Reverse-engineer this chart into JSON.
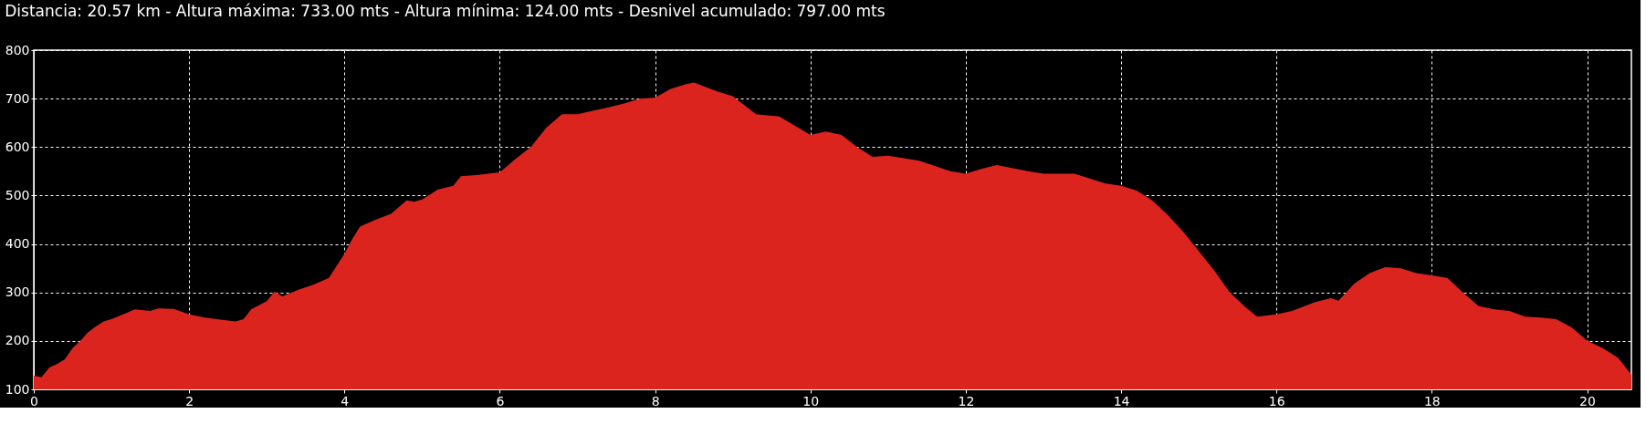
{
  "chart_data": {
    "type": "area",
    "title": "Distancia: 20.57 km - Altura máxima: 733.00 mts - Altura mínima: 124.00 mts - Desnivel acumulado: 797.00 mts",
    "x": [
      0,
      0.1,
      0.2,
      0.3,
      0.4,
      0.5,
      0.6,
      0.7,
      0.8,
      0.9,
      1.0,
      1.2,
      1.3,
      1.5,
      1.6,
      1.8,
      2.0,
      2.2,
      2.4,
      2.6,
      2.7,
      2.8,
      3.0,
      3.1,
      3.2,
      3.4,
      3.6,
      3.8,
      4.0,
      4.1,
      4.2,
      4.4,
      4.6,
      4.8,
      4.9,
      5.0,
      5.2,
      5.4,
      5.5,
      5.7,
      6.0,
      6.2,
      6.4,
      6.6,
      6.8,
      7.0,
      7.2,
      7.4,
      7.6,
      7.8,
      8.0,
      8.2,
      8.4,
      8.5,
      8.8,
      9.0,
      9.3,
      9.6,
      10.0,
      10.2,
      10.4,
      10.6,
      10.8,
      11.0,
      11.4,
      11.8,
      12.0,
      12.2,
      12.4,
      12.8,
      13.0,
      13.4,
      13.8,
      14.0,
      14.2,
      14.4,
      14.6,
      14.8,
      15.0,
      15.2,
      15.4,
      15.6,
      15.75,
      16.0,
      16.2,
      16.5,
      16.7,
      16.8,
      17.0,
      17.2,
      17.4,
      17.6,
      17.8,
      18.0,
      18.2,
      18.4,
      18.6,
      18.8,
      19.0,
      19.2,
      19.4,
      19.6,
      19.8,
      20.0,
      20.2,
      20.4,
      20.57
    ],
    "series": [
      {
        "color": "#dc241f",
        "values": [
          128,
          125,
          145,
          152,
          162,
          185,
          200,
          218,
          230,
          240,
          245,
          258,
          265,
          262,
          267,
          266,
          255,
          248,
          244,
          240,
          245,
          265,
          282,
          302,
          292,
          305,
          316,
          330,
          380,
          410,
          436,
          450,
          462,
          490,
          487,
          492,
          512,
          520,
          540,
          542,
          548,
          575,
          600,
          640,
          668,
          668,
          675,
          682,
          690,
          700,
          702,
          720,
          730,
          733,
          715,
          705,
          668,
          663,
          625,
          632,
          625,
          600,
          580,
          582,
          572,
          550,
          545,
          555,
          563,
          550,
          545,
          545,
          525,
          520,
          510,
          490,
          460,
          425,
          385,
          345,
          300,
          270,
          250,
          255,
          262,
          280,
          288,
          283,
          318,
          340,
          352,
          350,
          340,
          335,
          330,
          300,
          272,
          265,
          262,
          250,
          248,
          245,
          228,
          200,
          185,
          165,
          130
        ]
      }
    ],
    "xlim": [
      0,
      20.57
    ],
    "xticks": [
      0,
      2,
      4,
      6,
      8,
      10,
      12,
      14,
      16,
      18,
      20
    ],
    "ylim": [
      100,
      800
    ],
    "yticks": [
      100,
      200,
      300,
      400,
      500,
      600,
      700,
      800
    ],
    "grid": true
  }
}
